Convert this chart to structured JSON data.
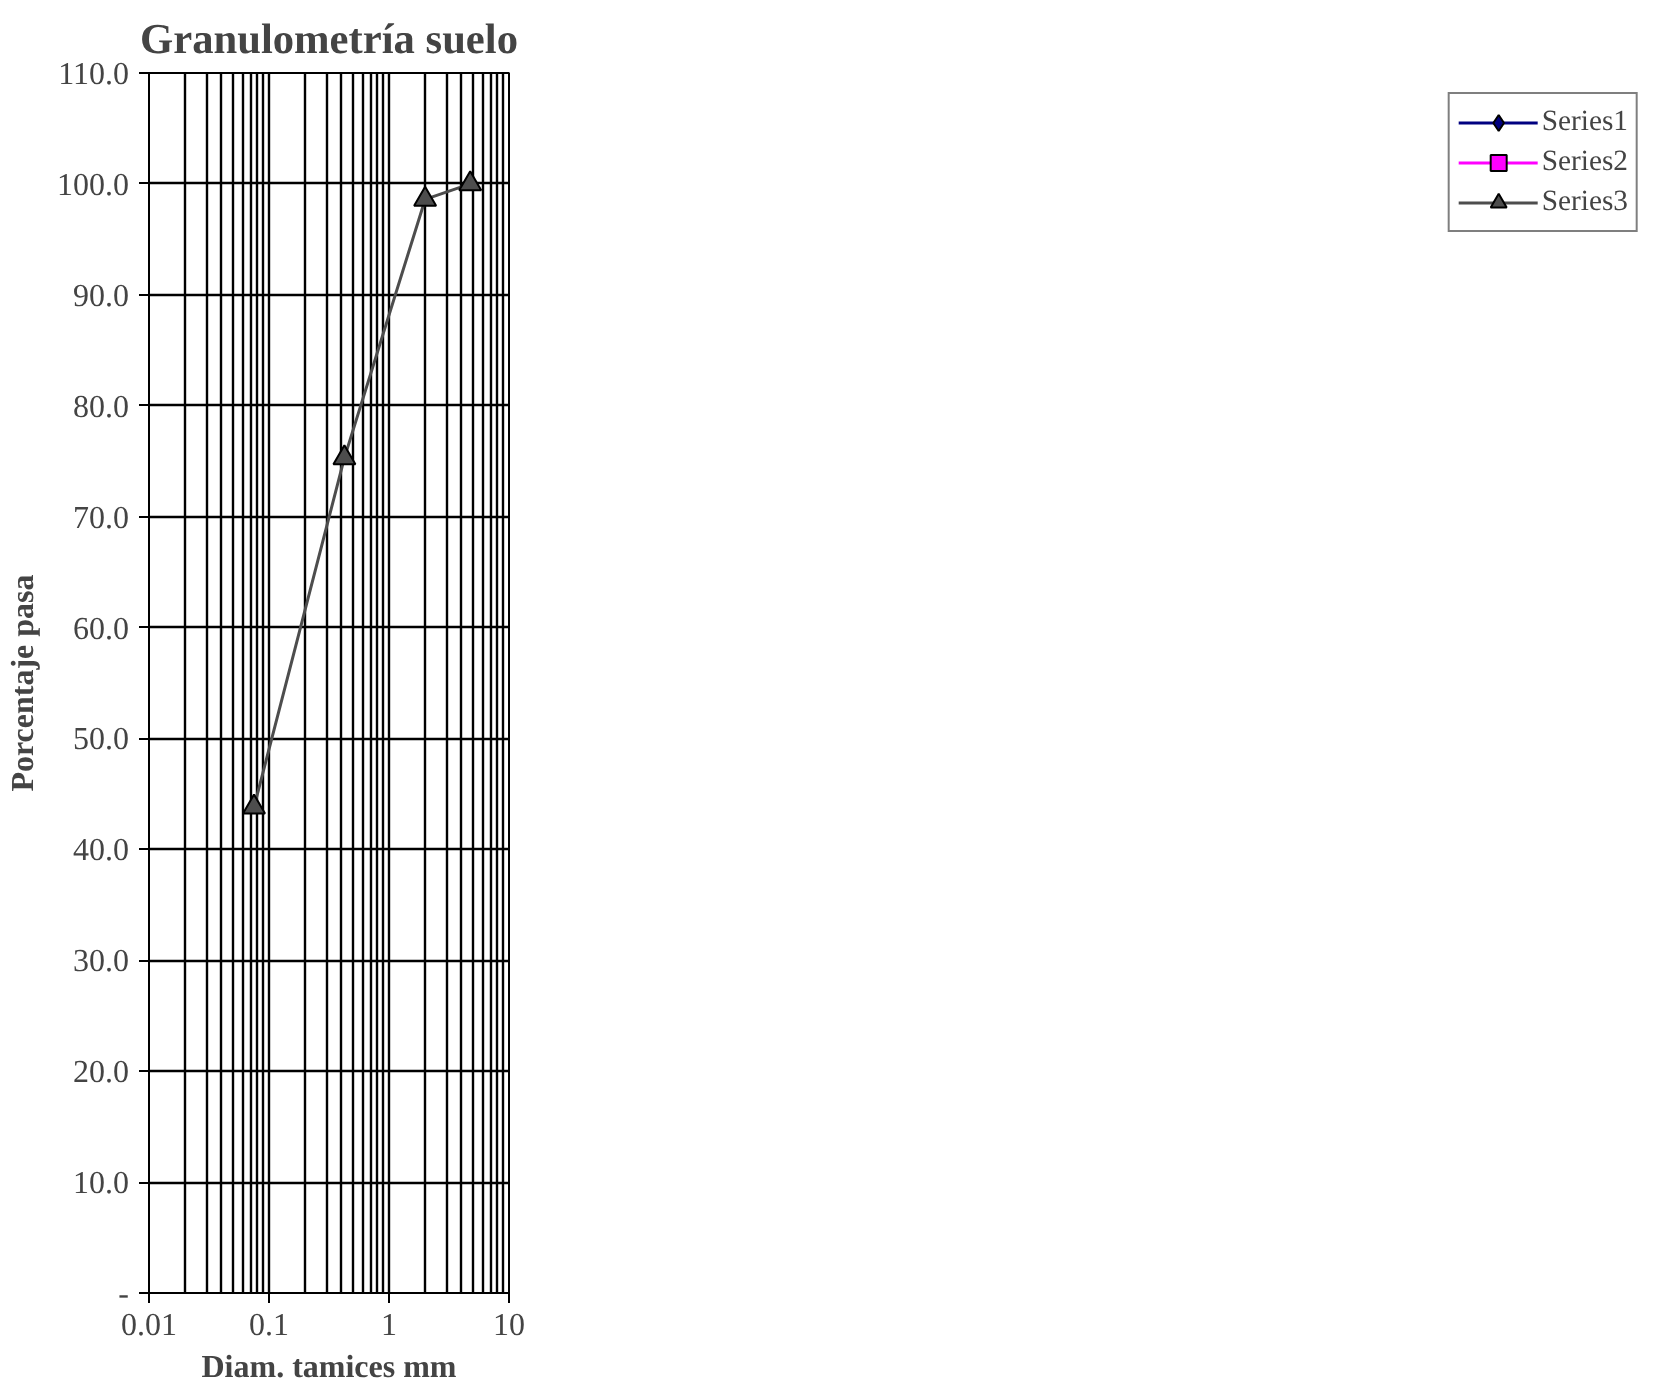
{
  "chart_data": {
    "type": "line",
    "title": "Granulometría suelo",
    "xlabel": "Diam. tamices mm",
    "ylabel": "Porcentaje pasa",
    "log": "x",
    "xlim": [
      0.01,
      10
    ],
    "xticks": [
      0.01,
      0.1,
      1,
      10
    ],
    "ylim": [
      0,
      110
    ],
    "yticks": [
      {
        "value": 0,
        "label": "-"
      },
      {
        "value": 10,
        "label": "10.0"
      },
      {
        "value": 20,
        "label": "20.0"
      },
      {
        "value": 30,
        "label": "30.0"
      },
      {
        "value": 40,
        "label": "40.0"
      },
      {
        "value": 50,
        "label": "50.0"
      },
      {
        "value": 60,
        "label": "60.0"
      },
      {
        "value": 70,
        "label": "70.0"
      },
      {
        "value": 80,
        "label": "80.0"
      },
      {
        "value": 90,
        "label": "90.0"
      },
      {
        "value": 100,
        "label": "100.0"
      },
      {
        "value": 110,
        "label": "110.0"
      }
    ],
    "grid": true,
    "legend": "right",
    "x": [
      0.075,
      0.425,
      2.0,
      4.75
    ],
    "series": [
      {
        "name": "Series1",
        "color": "#000080",
        "marker": "diamond",
        "values": [
          null,
          null,
          null,
          null
        ]
      },
      {
        "name": "Series2",
        "color": "#ff00ff",
        "marker": "square",
        "values": [
          null,
          null,
          null,
          null
        ]
      },
      {
        "name": "Series3",
        "color": "#4d4d4d",
        "marker": "triangle",
        "values": [
          43.8,
          75.3,
          98.6,
          100.0
        ]
      }
    ]
  }
}
